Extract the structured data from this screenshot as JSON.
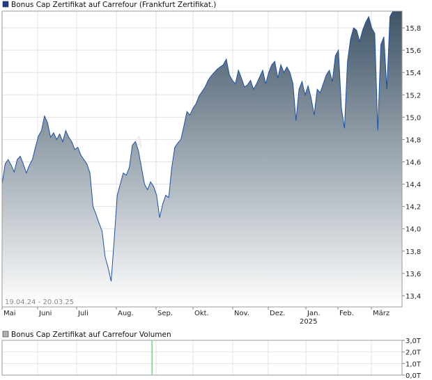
{
  "legend": {
    "price_label": "Bonus Cap Zertifikat auf Carrefour  (Frankfurt Zertifikat.)",
    "volume_label": "Bonus Cap Zertifikat auf Carrefour  Volumen",
    "price_swatch_color": "#1f3a8f",
    "volume_swatch_color": "#b0b0b0"
  },
  "range_label": "19.04.24 - 20.03.25",
  "watermark": "A",
  "colors": {
    "line": "#1a4fa8",
    "area_top": "#3e5466",
    "area_bottom": "#ffffff",
    "grid": "#e2e2e2",
    "volume_bar": "#2fbf4a"
  },
  "chart_data": [
    {
      "type": "area",
      "title": "",
      "ylim": [
        13.3,
        15.95
      ],
      "y_ticks": [
        "15,8",
        "15,6",
        "15,4",
        "15,2",
        "15,0",
        "14,8",
        "14,6",
        "14,4",
        "14,2",
        "14,0",
        "13,8",
        "13,6",
        "13,4"
      ],
      "x_ticks": [
        "Mai",
        "Juni",
        "Juli",
        "Aug.",
        "Sep.",
        "Okt.",
        "Nov.",
        "Dez.",
        "Jan.",
        "Feb.",
        "März"
      ],
      "x_year_label": "2025",
      "grid": true,
      "series": [
        {
          "values": [
            14.4,
            14.58,
            14.62,
            14.57,
            14.51,
            14.62,
            14.65,
            14.58,
            14.5,
            14.57,
            14.62,
            14.73,
            14.83,
            14.88,
            15.01,
            14.95,
            14.82,
            14.86,
            14.8,
            14.85,
            14.78,
            14.88,
            14.82,
            14.78,
            14.71,
            14.73,
            14.66,
            14.62,
            14.58,
            14.5,
            14.2,
            14.13,
            14.05,
            13.98,
            13.75,
            13.65,
            13.53,
            13.9,
            14.3,
            14.4,
            14.5,
            14.48,
            14.55,
            14.75,
            14.78,
            14.7,
            14.55,
            14.4,
            14.35,
            14.42,
            14.38,
            14.3,
            14.1,
            14.22,
            14.3,
            14.28,
            14.55,
            14.73,
            14.77,
            14.8,
            14.92,
            15.05,
            15.02,
            15.08,
            15.12,
            15.19,
            15.23,
            15.27,
            15.33,
            15.37,
            15.4,
            15.43,
            15.45,
            15.47,
            15.52,
            15.38,
            15.33,
            15.3,
            15.42,
            15.35,
            15.27,
            15.29,
            15.33,
            15.25,
            15.3,
            15.36,
            15.42,
            15.3,
            15.4,
            15.47,
            15.5,
            15.35,
            15.47,
            15.4,
            15.45,
            15.4,
            15.3,
            14.97,
            15.25,
            15.32,
            15.2,
            15.28,
            15.17,
            15.02,
            15.25,
            15.22,
            15.3,
            15.38,
            15.42,
            15.32,
            15.55,
            15.6,
            15.08,
            14.9,
            15.5,
            15.7,
            15.8,
            15.78,
            15.68,
            15.78,
            15.85,
            15.9,
            15.8,
            15.75,
            14.88,
            15.65,
            15.72,
            15.25,
            15.9,
            15.95,
            15.95,
            15.95,
            15.95
          ]
        }
      ]
    },
    {
      "type": "bar",
      "title": "",
      "ylim": [
        0,
        3
      ],
      "y_ticks": [
        "3,0T",
        "2,0T",
        "1,0T",
        "0,0T"
      ],
      "series": [
        {
          "name": "Volumen",
          "values": [
            0,
            0,
            0,
            0,
            0,
            0,
            0,
            0,
            0,
            0,
            0,
            0,
            0,
            0,
            0,
            0,
            0,
            0,
            0,
            0,
            0,
            0,
            0,
            0,
            0,
            0,
            0,
            0,
            0,
            0,
            0,
            0,
            0,
            0,
            0,
            0,
            0,
            0,
            0,
            0,
            0,
            0,
            0,
            0,
            0,
            0,
            0,
            0,
            0,
            0,
            0,
            0,
            0,
            0,
            0,
            0,
            0,
            0,
            0,
            0,
            0,
            0,
            0,
            0,
            0,
            0,
            0,
            0,
            0,
            0,
            0,
            0,
            0,
            0,
            0,
            0,
            0,
            0,
            0,
            0,
            0,
            0,
            0,
            0,
            0,
            0,
            0,
            0,
            0,
            0,
            0,
            0,
            0,
            0,
            0,
            0,
            0,
            0,
            0,
            0,
            0,
            0,
            0,
            0,
            0,
            0,
            0,
            0,
            0,
            0,
            0,
            0,
            0,
            0,
            0,
            0,
            0,
            0,
            0,
            0,
            0,
            0,
            0,
            0,
            0,
            0,
            0,
            0,
            0,
            0,
            0,
            0,
            0
          ],
          "spike_index": 49,
          "spike_value": 3.0
        }
      ]
    }
  ]
}
